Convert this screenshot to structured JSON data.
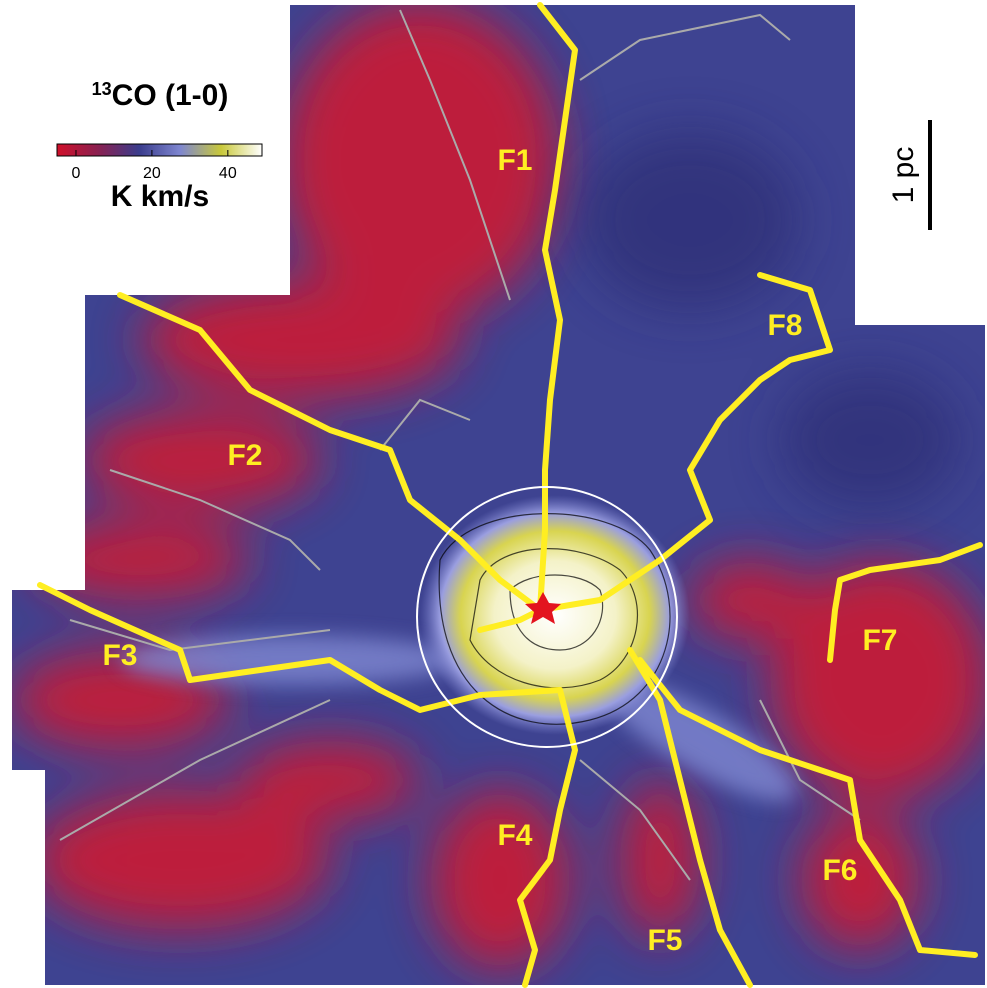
{
  "title": {
    "superscript": "13",
    "text": "CO (1-0)"
  },
  "colorbar": {
    "lim": [
      -5,
      49
    ],
    "ticks": [
      0,
      20,
      40
    ],
    "unit": "K km/s",
    "colors": [
      "#d0102a",
      "#8a2050",
      "#3a3c8c",
      "#7e86d0",
      "#c8c83a",
      "#ffffff"
    ]
  },
  "scale_bar": {
    "label": "1 pc"
  },
  "filaments": [
    "F1",
    "F2",
    "F3",
    "F4",
    "F5",
    "F6",
    "F7",
    "F8"
  ]
}
